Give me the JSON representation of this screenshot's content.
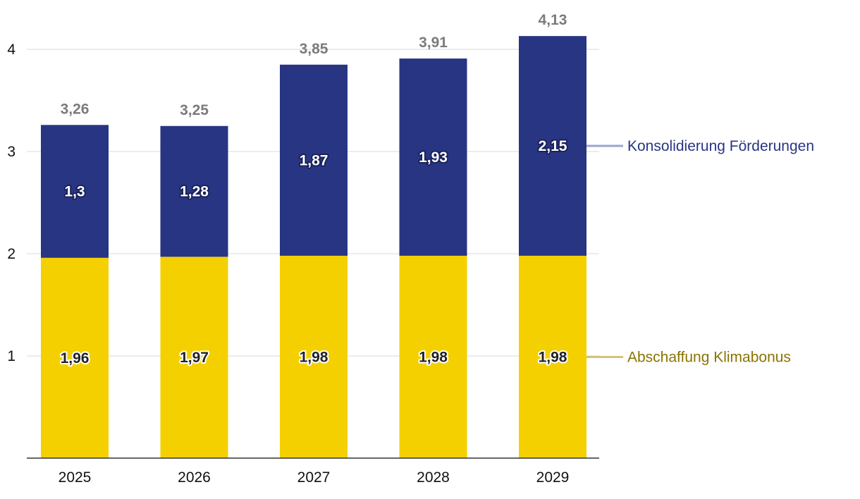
{
  "chart_data": {
    "type": "bar",
    "stacked": true,
    "categories": [
      "2025",
      "2026",
      "2027",
      "2028",
      "2029"
    ],
    "series": [
      {
        "name": "Abschaffung Klimabonus",
        "values": [
          1.96,
          1.97,
          1.98,
          1.98,
          1.98
        ],
        "labels": [
          "1,96",
          "1,97",
          "1,98",
          "1,98",
          "1,98"
        ],
        "color": "#f5d000",
        "legend_color": "#8a7400",
        "connector_color": "#d4c27a"
      },
      {
        "name": "Konsolidierung Förderungen",
        "values": [
          1.3,
          1.28,
          1.87,
          1.93,
          2.15
        ],
        "labels": [
          "1,3",
          "1,28",
          "1,87",
          "1,93",
          "2,15"
        ],
        "color": "#283583",
        "legend_color": "#283583",
        "connector_color": "#9aa5cf"
      }
    ],
    "totals": [
      3.26,
      3.25,
      3.85,
      3.91,
      4.13
    ],
    "total_labels": [
      "3,26",
      "3,25",
      "3,85",
      "3,91",
      "4,13"
    ],
    "yticks": [
      "1",
      "2",
      "3",
      "4"
    ],
    "ytick_values": [
      1,
      2,
      3,
      4
    ],
    "ylim": [
      0,
      4.13
    ],
    "grid": true,
    "legend_position": "right"
  }
}
